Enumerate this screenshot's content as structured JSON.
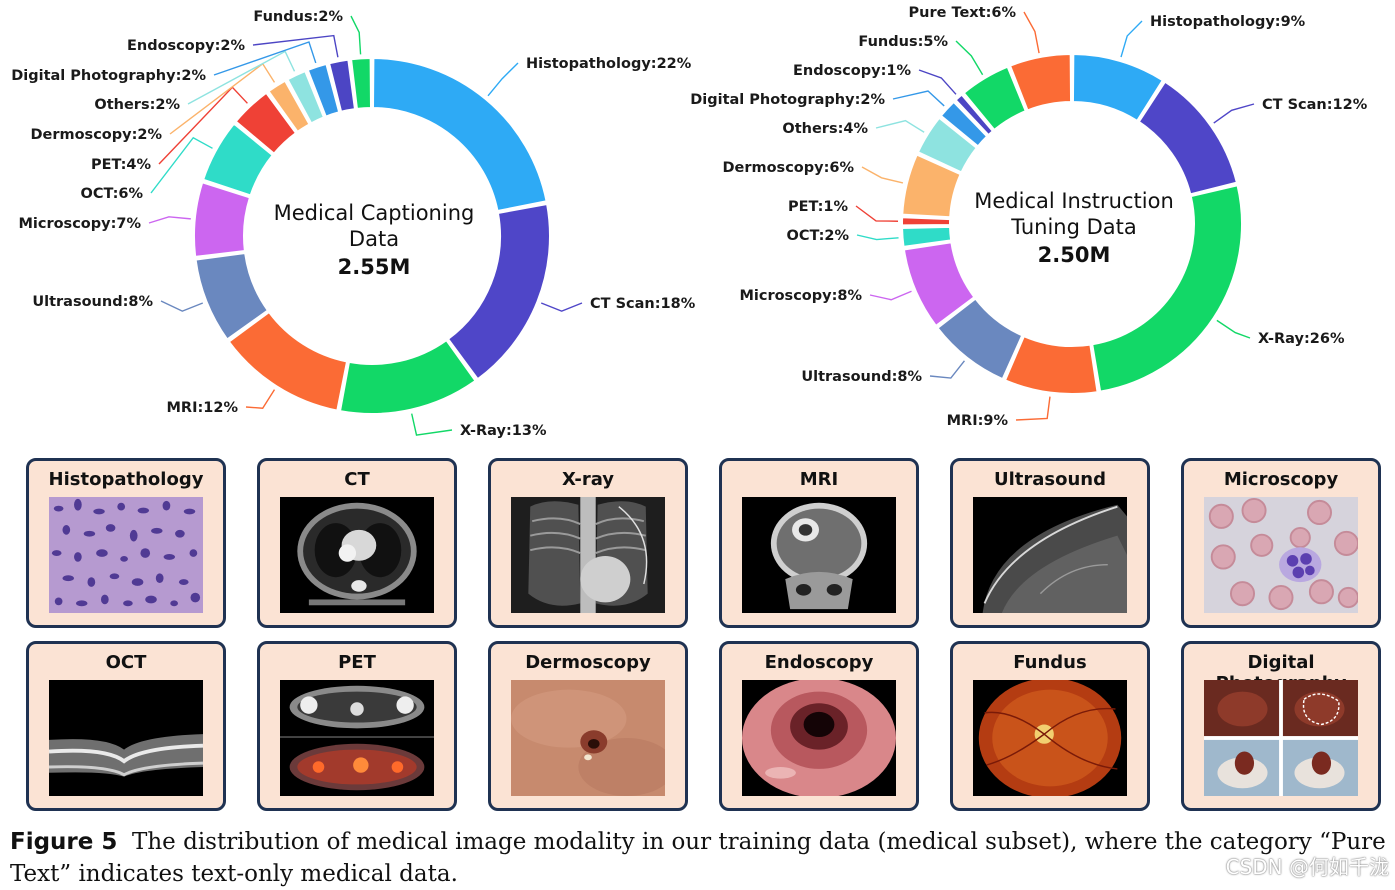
{
  "chart_data": [
    {
      "type": "donut",
      "center_label": [
        "Medical Captioning",
        "Data"
      ],
      "center_value": "2.55M",
      "series": [
        {
          "name": "Histopathology",
          "value": 22,
          "label": "Histopathology:22%",
          "color": "#2eaaf5"
        },
        {
          "name": "CT Scan",
          "value": 18,
          "label": "CT Scan:18%",
          "color": "#4f46c8"
        },
        {
          "name": "X-Ray",
          "value": 13,
          "label": "X-Ray:13%",
          "color": "#12d867"
        },
        {
          "name": "MRI",
          "value": 12,
          "label": "MRI:12%",
          "color": "#fb6b35"
        },
        {
          "name": "Ultrasound",
          "value": 8,
          "label": "Ultrasound:8%",
          "color": "#6a88bf"
        },
        {
          "name": "Microscopy",
          "value": 7,
          "label": "Microscopy:7%",
          "color": "#cc66f0"
        },
        {
          "name": "OCT",
          "value": 6,
          "label": "OCT:6%",
          "color": "#2fdcc8"
        },
        {
          "name": "PET",
          "value": 4,
          "label": "PET:4%",
          "color": "#ef4136"
        },
        {
          "name": "Dermoscopy",
          "value": 2,
          "label": "Dermoscopy:2%",
          "color": "#fbb36b"
        },
        {
          "name": "Others",
          "value": 2,
          "label": "Others:2%",
          "color": "#8ee3e0"
        },
        {
          "name": "Digital Photography",
          "value": 2,
          "label": "Digital Photography:2%",
          "color": "#3498e8"
        },
        {
          "name": "Endoscopy",
          "value": 2,
          "label": "Endoscopy:2%",
          "color": "#4c45c4"
        },
        {
          "name": "Fundus",
          "value": 2,
          "label": "Fundus:2%",
          "color": "#12d867"
        }
      ]
    },
    {
      "type": "donut",
      "center_label": [
        "Medical Instruction",
        "Tuning Data"
      ],
      "center_value": "2.50M",
      "series": [
        {
          "name": "Histopathology",
          "value": 9,
          "label": "Histopathology:9%",
          "color": "#2eaaf5"
        },
        {
          "name": "CT Scan",
          "value": 12,
          "label": "CT Scan:12%",
          "color": "#4f46c8"
        },
        {
          "name": "X-Ray",
          "value": 26,
          "label": "X-Ray:26%",
          "color": "#12d867"
        },
        {
          "name": "MRI",
          "value": 9,
          "label": "MRI:9%",
          "color": "#fb6b35"
        },
        {
          "name": "Ultrasound",
          "value": 8,
          "label": "Ultrasound:8%",
          "color": "#6a88bf"
        },
        {
          "name": "Microscopy",
          "value": 8,
          "label": "Microscopy:8%",
          "color": "#cc66f0"
        },
        {
          "name": "OCT",
          "value": 2,
          "label": "OCT:2%",
          "color": "#2fdcc8"
        },
        {
          "name": "PET",
          "value": 1,
          "label": "PET:1%",
          "color": "#ef4136"
        },
        {
          "name": "Dermoscopy",
          "value": 6,
          "label": "Dermoscopy:6%",
          "color": "#fbb36b"
        },
        {
          "name": "Others",
          "value": 4,
          "label": "Others:4%",
          "color": "#8ee3e0"
        },
        {
          "name": "Digital Photography",
          "value": 2,
          "label": "Digital Photography:2%",
          "color": "#3498e8"
        },
        {
          "name": "Endoscopy",
          "value": 1,
          "label": "Endoscopy:1%",
          "color": "#4c45c4"
        },
        {
          "name": "Fundus",
          "value": 5,
          "label": "Fundus:5%",
          "color": "#12d867"
        },
        {
          "name": "Pure Text",
          "value": 6,
          "label": "Pure Text:6%",
          "color": "#fb6b35"
        }
      ]
    }
  ],
  "modality_panels": [
    {
      "title": "Histopathology",
      "icon": "histopathology-image"
    },
    {
      "title": "CT",
      "icon": "ct-scan-image"
    },
    {
      "title": "X-ray",
      "icon": "xray-image"
    },
    {
      "title": "MRI",
      "icon": "mri-image"
    },
    {
      "title": "Ultrasound",
      "icon": "ultrasound-image"
    },
    {
      "title": "Microscopy",
      "icon": "microscopy-image"
    },
    {
      "title": "OCT",
      "icon": "oct-image"
    },
    {
      "title": "PET",
      "icon": "pet-image"
    },
    {
      "title": "Dermoscopy",
      "icon": "dermoscopy-image"
    },
    {
      "title": "Endoscopy",
      "icon": "endoscopy-image"
    },
    {
      "title": "Fundus",
      "icon": "fundus-image"
    },
    {
      "title": "Digital Photography",
      "icon": "digital-photography-image"
    }
  ],
  "caption": {
    "label": "Figure 5",
    "text": "The distribution of medical image modality in our training data (medical subset), where the category “Pure Text” indicates text-only medical data."
  },
  "watermark": "CSDN @何如千泷"
}
